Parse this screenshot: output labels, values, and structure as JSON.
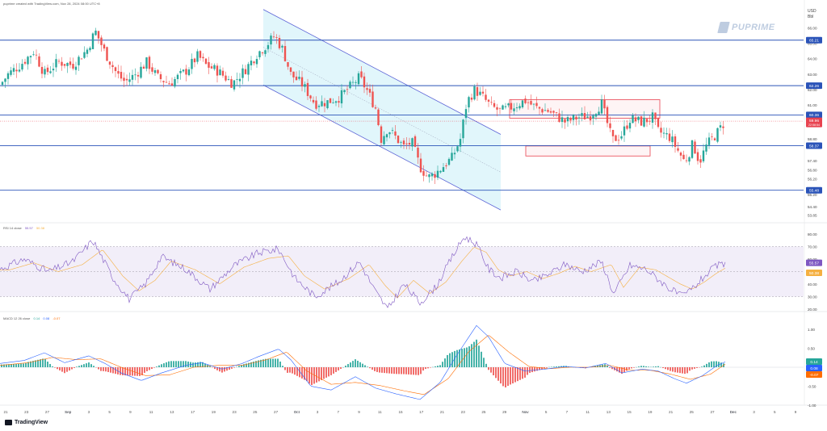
{
  "header": {
    "source": "puprime created with TradingView.com, Nov 28, 2024 08:00 UTC+8",
    "currency": "USD",
    "unit": "Bbl"
  },
  "watermark": {
    "text": "PUPRIME",
    "icon": "puprime-logo-icon"
  },
  "footer": {
    "brand": "TradingView",
    "icon": "tradingview-logo-icon"
  },
  "chart_data": {
    "type": "candlestick",
    "price_axis": {
      "range": [
        53.5,
        67.0
      ],
      "ticks": [
        "66.00",
        "65.00",
        "64.00",
        "63.00",
        "62.00",
        "61.00",
        "60.00",
        "58.80",
        "57.40",
        "56.80",
        "56.20",
        "55.20",
        "54.40",
        "53.85"
      ],
      "levels": [
        {
          "value": 65.21,
          "label": "65.21",
          "color": "#2a53b8"
        },
        {
          "value": 62.26,
          "label": "62.26",
          "color": "#2a53b8"
        },
        {
          "value": 60.36,
          "label": "60.36",
          "color": "#2a53b8"
        },
        {
          "value": 58.37,
          "label": "58.37",
          "color": "#2a53b8"
        },
        {
          "value": 55.48,
          "label": "55.48",
          "color": "#2a53b8"
        }
      ],
      "current": {
        "value": 59.96,
        "label": "59.96",
        "countdown": "22:58:54",
        "color": "#e84350"
      }
    },
    "time_axis": {
      "ticks": [
        "21",
        "23",
        "27",
        "Sep",
        "3",
        "5",
        "9",
        "11",
        "13",
        "17",
        "19",
        "23",
        "25",
        "27",
        "Oct",
        "3",
        "7",
        "9",
        "11",
        "15",
        "17",
        "21",
        "23",
        "25",
        "29",
        "Nov",
        "5",
        "7",
        "11",
        "13",
        "15",
        "19",
        "21",
        "25",
        "27",
        "Dec",
        "3",
        "5",
        "9"
      ],
      "major": [
        "Sep",
        "Oct",
        "Nov",
        "Dec"
      ]
    },
    "price_path": [
      [
        0,
        62.3
      ],
      [
        10,
        63.0
      ],
      [
        25,
        63.6
      ],
      [
        42,
        64.5
      ],
      [
        55,
        63.0
      ],
      [
        72,
        63.8
      ],
      [
        90,
        63.6
      ],
      [
        108,
        64.6
      ],
      [
        118,
        65.8
      ],
      [
        130,
        64.4
      ],
      [
        145,
        63.0
      ],
      [
        155,
        62.5
      ],
      [
        168,
        63.0
      ],
      [
        182,
        63.8
      ],
      [
        195,
        62.8
      ],
      [
        210,
        62.4
      ],
      [
        230,
        63.2
      ],
      [
        245,
        64.2
      ],
      [
        255,
        63.6
      ],
      [
        270,
        63.2
      ],
      [
        288,
        62.4
      ],
      [
        305,
        63.4
      ],
      [
        318,
        64.3
      ],
      [
        330,
        64.9
      ],
      [
        340,
        65.5
      ],
      [
        350,
        64.6
      ],
      [
        360,
        63.0
      ],
      [
        375,
        62.3
      ],
      [
        390,
        61.1
      ],
      [
        405,
        61.2
      ],
      [
        420,
        61.5
      ],
      [
        430,
        62.0
      ],
      [
        445,
        62.8
      ],
      [
        455,
        61.9
      ],
      [
        465,
        60.8
      ],
      [
        472,
        58.8
      ],
      [
        480,
        59.5
      ],
      [
        490,
        58.9
      ],
      [
        500,
        58.3
      ],
      [
        510,
        58.6
      ],
      [
        520,
        57.0
      ],
      [
        530,
        56.3
      ],
      [
        540,
        56.6
      ],
      [
        550,
        57.1
      ],
      [
        560,
        57.6
      ],
      [
        570,
        58.8
      ],
      [
        578,
        61.2
      ],
      [
        588,
        62.0
      ],
      [
        598,
        61.5
      ],
      [
        608,
        60.9
      ],
      [
        620,
        60.6
      ],
      [
        635,
        60.9
      ],
      [
        650,
        61.3
      ],
      [
        665,
        60.8
      ],
      [
        680,
        60.6
      ],
      [
        700,
        59.9
      ],
      [
        715,
        60.2
      ],
      [
        730,
        60.3
      ],
      [
        745,
        61.1
      ],
      [
        758,
        58.7
      ],
      [
        770,
        59.1
      ],
      [
        780,
        60.1
      ],
      [
        795,
        59.9
      ],
      [
        808,
        60.2
      ],
      [
        815,
        59.3
      ],
      [
        830,
        58.9
      ],
      [
        840,
        58.0
      ],
      [
        848,
        57.3
      ],
      [
        858,
        58.5
      ],
      [
        866,
        57.3
      ],
      [
        875,
        58.4
      ],
      [
        888,
        59.2
      ],
      [
        898,
        59.96
      ]
    ],
    "channel": {
      "upper": [
        [
          326,
          67.2
        ],
        [
          620,
          59.1
        ]
      ],
      "lower": [
        [
          326,
          62.3
        ],
        [
          620,
          54.2
        ]
      ],
      "mid": [
        [
          326,
          64.75
        ],
        [
          620,
          56.65
        ]
      ],
      "fill": "#c8eef7"
    },
    "zones": [
      {
        "x1": 631,
        "x2": 817,
        "y1": 61.35,
        "y2": 60.15,
        "color": "#e84350"
      },
      {
        "x1": 651,
        "x2": 805,
        "y1": 58.35,
        "y2": 57.7,
        "color": "#e84350"
      }
    ],
    "rsi": {
      "label": "RSI 14 close",
      "values": [
        "55.57",
        "50.38"
      ],
      "ticks": [
        "80.00",
        "70.00",
        "60.00",
        "50.00",
        "40.00",
        "30.00",
        "20.00"
      ],
      "band": [
        30,
        70
      ],
      "line_color": "#7e57c2",
      "ma_color": "#f5b041",
      "path": [
        [
          0,
          52
        ],
        [
          30,
          60
        ],
        [
          60,
          50
        ],
        [
          90,
          58
        ],
        [
          115,
          75
        ],
        [
          140,
          45
        ],
        [
          160,
          28
        ],
        [
          180,
          40
        ],
        [
          200,
          62
        ],
        [
          230,
          52
        ],
        [
          260,
          36
        ],
        [
          290,
          55
        ],
        [
          320,
          65
        ],
        [
          345,
          68
        ],
        [
          365,
          45
        ],
        [
          390,
          30
        ],
        [
          420,
          42
        ],
        [
          445,
          58
        ],
        [
          465,
          34
        ],
        [
          480,
          20
        ],
        [
          500,
          40
        ],
        [
          520,
          25
        ],
        [
          540,
          38
        ],
        [
          560,
          62
        ],
        [
          575,
          78
        ],
        [
          590,
          72
        ],
        [
          605,
          52
        ],
        [
          620,
          45
        ],
        [
          640,
          50
        ],
        [
          660,
          42
        ],
        [
          680,
          48
        ],
        [
          700,
          56
        ],
        [
          720,
          50
        ],
        [
          745,
          58
        ],
        [
          760,
          32
        ],
        [
          780,
          55
        ],
        [
          800,
          52
        ],
        [
          815,
          44
        ],
        [
          830,
          36
        ],
        [
          845,
          30
        ],
        [
          860,
          38
        ],
        [
          875,
          48
        ],
        [
          888,
          55
        ],
        [
          898,
          55.57
        ]
      ]
    },
    "macd": {
      "label": "MACD 12 26 close",
      "values": [
        "0.14",
        "0.08",
        "-0.07"
      ],
      "ticks": [
        "1.00",
        "0.50",
        "0.00",
        "-0.50",
        "-1.00"
      ],
      "macd_color": "#2962ff",
      "signal_color": "#ff6d00",
      "pos_color": "#26a69a",
      "neg_color": "#ef5350",
      "macd_path": [
        [
          0,
          0.1
        ],
        [
          30,
          0.18
        ],
        [
          55,
          0.38
        ],
        [
          80,
          0.12
        ],
        [
          110,
          0.3
        ],
        [
          130,
          0.1
        ],
        [
          150,
          -0.15
        ],
        [
          175,
          -0.35
        ],
        [
          200,
          -0.15
        ],
        [
          230,
          0.05
        ],
        [
          250,
          0.12
        ],
        [
          275,
          -0.05
        ],
        [
          300,
          0.1
        ],
        [
          320,
          0.28
        ],
        [
          345,
          0.48
        ],
        [
          360,
          0.2
        ],
        [
          385,
          -0.5
        ],
        [
          410,
          -0.6
        ],
        [
          440,
          -0.25
        ],
        [
          465,
          -0.55
        ],
        [
          490,
          -0.7
        ],
        [
          520,
          -0.85
        ],
        [
          545,
          -0.4
        ],
        [
          565,
          0.3
        ],
        [
          590,
          1.1
        ],
        [
          605,
          0.8
        ],
        [
          625,
          0.1
        ],
        [
          650,
          -0.1
        ],
        [
          675,
          -0.05
        ],
        [
          700,
          0.02
        ],
        [
          725,
          -0.02
        ],
        [
          750,
          0.1
        ],
        [
          770,
          -0.15
        ],
        [
          795,
          -0.05
        ],
        [
          815,
          -0.1
        ],
        [
          835,
          -0.3
        ],
        [
          850,
          -0.42
        ],
        [
          870,
          -0.22
        ],
        [
          888,
          0.05
        ],
        [
          898,
          0.14
        ]
      ],
      "signal_path": [
        [
          0,
          0.05
        ],
        [
          35,
          0.12
        ],
        [
          65,
          0.26
        ],
        [
          95,
          0.2
        ],
        [
          125,
          0.22
        ],
        [
          150,
          0.0
        ],
        [
          180,
          -0.22
        ],
        [
          210,
          -0.2
        ],
        [
          240,
          0.0
        ],
        [
          270,
          0.05
        ],
        [
          300,
          0.05
        ],
        [
          330,
          0.2
        ],
        [
          355,
          0.4
        ],
        [
          380,
          -0.1
        ],
        [
          410,
          -0.45
        ],
        [
          440,
          -0.4
        ],
        [
          470,
          -0.48
        ],
        [
          500,
          -0.62
        ],
        [
          525,
          -0.72
        ],
        [
          555,
          -0.3
        ],
        [
          580,
          0.4
        ],
        [
          605,
          0.85
        ],
        [
          630,
          0.4
        ],
        [
          655,
          0.02
        ],
        [
          680,
          -0.04
        ],
        [
          705,
          0.0
        ],
        [
          730,
          0.0
        ],
        [
          755,
          0.05
        ],
        [
          780,
          -0.08
        ],
        [
          805,
          -0.08
        ],
        [
          830,
          -0.18
        ],
        [
          855,
          -0.32
        ],
        [
          880,
          -0.18
        ],
        [
          898,
          0.08
        ]
      ]
    },
    "candle_colors": {
      "up": "#26a69a",
      "down": "#ef5350"
    },
    "level_color": "#2a53b8"
  }
}
